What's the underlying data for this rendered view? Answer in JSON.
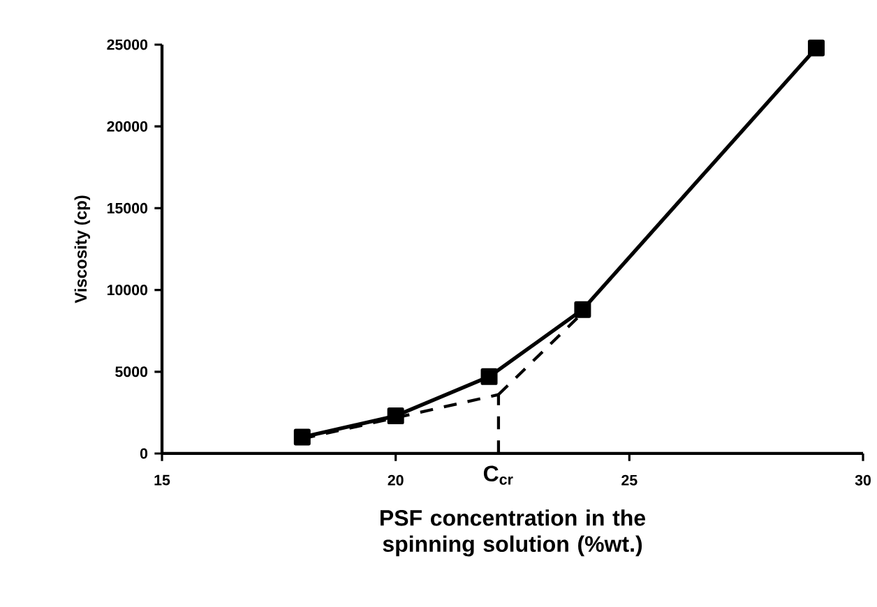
{
  "chart_data": {
    "type": "line",
    "xlabel": "PSF concentration in the spinning solution (%wt.)",
    "ylabel": "Viscosity (cp)",
    "xlim": [
      15,
      30
    ],
    "xticks": [
      15,
      20,
      25,
      30
    ],
    "ylim": [
      0,
      25000
    ],
    "yticks": [
      0,
      5000,
      10000,
      15000,
      20000,
      25000
    ],
    "series": [
      {
        "color": "#000000",
        "x": [
          18,
          20,
          22,
          24,
          29
        ],
        "values": [
          1000,
          2300,
          4700,
          8800,
          24800
        ],
        "marker": "square",
        "line_style": "solid"
      },
      {
        "color": "#000000",
        "x": [
          18,
          22.2
        ],
        "values": [
          900,
          3600
        ],
        "marker": "none",
        "line_style": "dashed"
      },
      {
        "color": "#000000",
        "x": [
          22.2,
          24
        ],
        "values": [
          3600,
          8600
        ],
        "marker": "none",
        "line_style": "dashed"
      },
      {
        "color": "#000000",
        "x": [
          22.2,
          22.2
        ],
        "values": [
          0,
          3600
        ],
        "marker": "none",
        "line_style": "dashed"
      }
    ],
    "annotations": [
      {
        "text": "C$_{cr}$",
        "x": 22.2,
        "y": 0
      }
    ]
  }
}
